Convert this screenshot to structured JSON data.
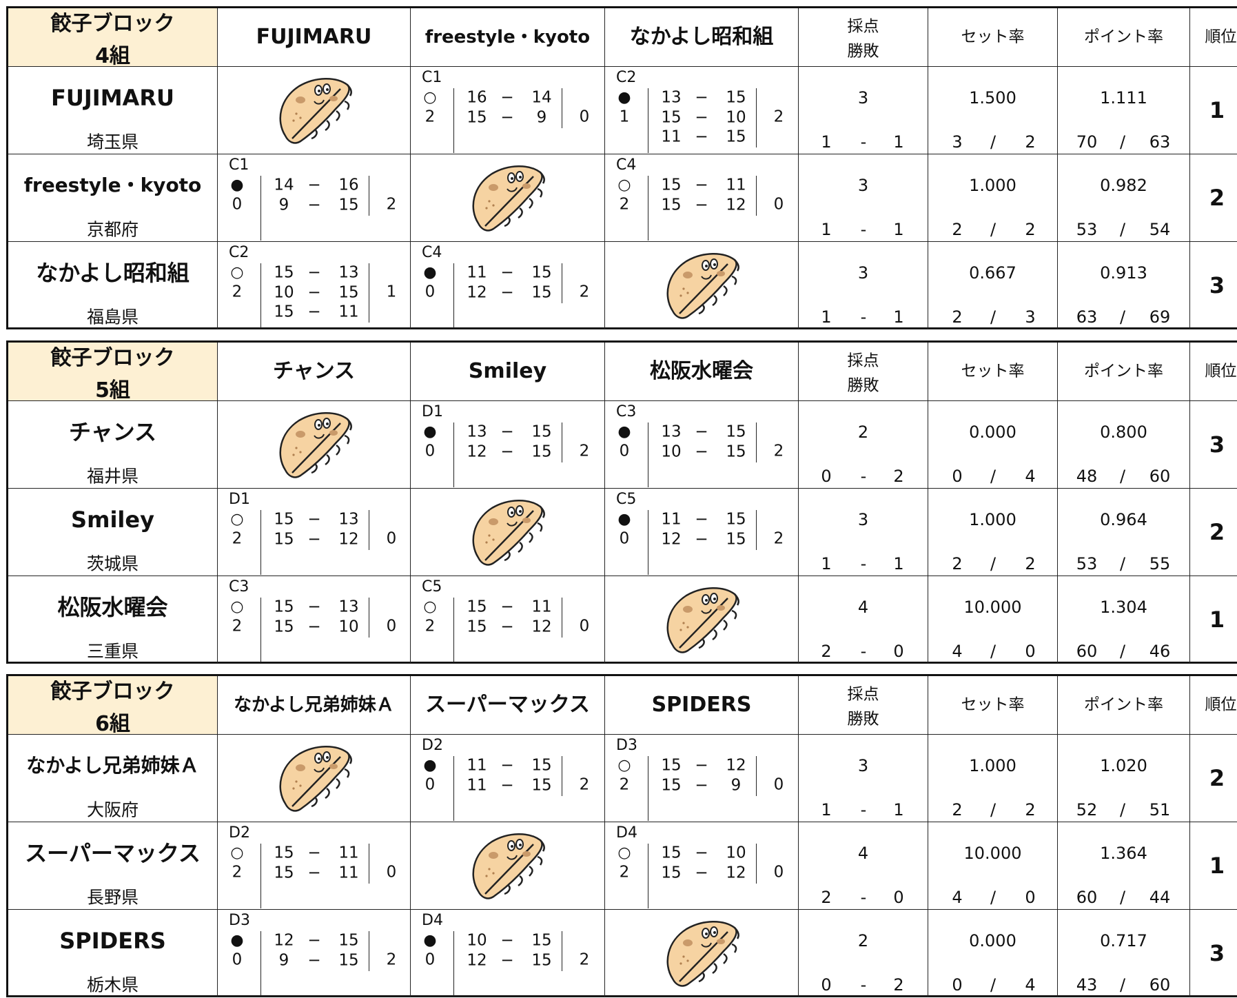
{
  "separators": {
    "score": "−",
    "record": "-",
    "ratio": "/"
  },
  "blocks": [
    {
      "title": [
        "餃子ブロック",
        "4組"
      ],
      "headers": [
        "採点",
        "勝敗",
        "セット率",
        "ポイント率",
        "順位"
      ],
      "teams": [
        {
          "name": "FUJIMARU",
          "pref": "埼玉県",
          "results": [
            null,
            {
              "code": "C1",
              "mark": "○",
              "won": 2,
              "scores": [
                [
                  16,
                  14
                ],
                [
                  15,
                  9
                ]
              ],
              "lost": 0
            },
            {
              "code": "C2",
              "mark": "●",
              "won": 1,
              "scores": [
                [
                  13,
                  15
                ],
                [
                  15,
                  10
                ],
                [
                  11,
                  15
                ]
              ],
              "lost": 2
            }
          ],
          "points": 3,
          "record": [
            1,
            1
          ],
          "set_rate": "1.500",
          "set_ratio": [
            3,
            2
          ],
          "point_rate": "1.111",
          "point_ratio": [
            70,
            63
          ],
          "rank": 1
        },
        {
          "name": "freestyle・kyoto",
          "pref": "京都府",
          "results": [
            {
              "code": "C1",
              "mark": "●",
              "won": 0,
              "scores": [
                [
                  14,
                  16
                ],
                [
                  9,
                  15
                ]
              ],
              "lost": 2
            },
            null,
            {
              "code": "C4",
              "mark": "○",
              "won": 2,
              "scores": [
                [
                  15,
                  11
                ],
                [
                  15,
                  12
                ]
              ],
              "lost": 0
            }
          ],
          "points": 3,
          "record": [
            1,
            1
          ],
          "set_rate": "1.000",
          "set_ratio": [
            2,
            2
          ],
          "point_rate": "0.982",
          "point_ratio": [
            53,
            54
          ],
          "rank": 2
        },
        {
          "name": "なかよし昭和組",
          "pref": "福島県",
          "results": [
            {
              "code": "C2",
              "mark": "○",
              "won": 2,
              "scores": [
                [
                  15,
                  13
                ],
                [
                  10,
                  15
                ],
                [
                  15,
                  11
                ]
              ],
              "lost": 1
            },
            {
              "code": "C4",
              "mark": "●",
              "won": 0,
              "scores": [
                [
                  11,
                  15
                ],
                [
                  12,
                  15
                ]
              ],
              "lost": 2
            },
            null
          ],
          "points": 3,
          "record": [
            1,
            1
          ],
          "set_rate": "0.667",
          "set_ratio": [
            2,
            3
          ],
          "point_rate": "0.913",
          "point_ratio": [
            63,
            69
          ],
          "rank": 3
        }
      ]
    },
    {
      "title": [
        "餃子ブロック",
        "5組"
      ],
      "headers": [
        "採点",
        "勝敗",
        "セット率",
        "ポイント率",
        "順位"
      ],
      "teams": [
        {
          "name": "チャンス",
          "pref": "福井県",
          "results": [
            null,
            {
              "code": "D1",
              "mark": "●",
              "won": 0,
              "scores": [
                [
                  13,
                  15
                ],
                [
                  12,
                  15
                ]
              ],
              "lost": 2
            },
            {
              "code": "C3",
              "mark": "●",
              "won": 0,
              "scores": [
                [
                  13,
                  15
                ],
                [
                  10,
                  15
                ]
              ],
              "lost": 2
            }
          ],
          "points": 2,
          "record": [
            0,
            2
          ],
          "set_rate": "0.000",
          "set_ratio": [
            0,
            4
          ],
          "point_rate": "0.800",
          "point_ratio": [
            48,
            60
          ],
          "rank": 3
        },
        {
          "name": "Smiley",
          "pref": "茨城県",
          "results": [
            {
              "code": "D1",
              "mark": "○",
              "won": 2,
              "scores": [
                [
                  15,
                  13
                ],
                [
                  15,
                  12
                ]
              ],
              "lost": 0
            },
            null,
            {
              "code": "C5",
              "mark": "●",
              "won": 0,
              "scores": [
                [
                  11,
                  15
                ],
                [
                  12,
                  15
                ]
              ],
              "lost": 2
            }
          ],
          "points": 3,
          "record": [
            1,
            1
          ],
          "set_rate": "1.000",
          "set_ratio": [
            2,
            2
          ],
          "point_rate": "0.964",
          "point_ratio": [
            53,
            55
          ],
          "rank": 2
        },
        {
          "name": "松阪水曜会",
          "pref": "三重県",
          "results": [
            {
              "code": "C3",
              "mark": "○",
              "won": 2,
              "scores": [
                [
                  15,
                  13
                ],
                [
                  15,
                  10
                ]
              ],
              "lost": 0
            },
            {
              "code": "C5",
              "mark": "○",
              "won": 2,
              "scores": [
                [
                  15,
                  11
                ],
                [
                  15,
                  12
                ]
              ],
              "lost": 0
            },
            null
          ],
          "points": 4,
          "record": [
            2,
            0
          ],
          "set_rate": "10.000",
          "set_ratio": [
            4,
            0
          ],
          "point_rate": "1.304",
          "point_ratio": [
            60,
            46
          ],
          "rank": 1
        }
      ]
    },
    {
      "title": [
        "餃子ブロック",
        "6組"
      ],
      "headers": [
        "採点",
        "勝敗",
        "セット率",
        "ポイント率",
        "順位"
      ],
      "teams": [
        {
          "name": "なかよし兄弟姉妹Ａ",
          "pref": "大阪府",
          "results": [
            null,
            {
              "code": "D2",
              "mark": "●",
              "won": 0,
              "scores": [
                [
                  11,
                  15
                ],
                [
                  11,
                  15
                ]
              ],
              "lost": 2
            },
            {
              "code": "D3",
              "mark": "○",
              "won": 2,
              "scores": [
                [
                  15,
                  12
                ],
                [
                  15,
                  9
                ]
              ],
              "lost": 0
            }
          ],
          "points": 3,
          "record": [
            1,
            1
          ],
          "set_rate": "1.000",
          "set_ratio": [
            2,
            2
          ],
          "point_rate": "1.020",
          "point_ratio": [
            52,
            51
          ],
          "rank": 2
        },
        {
          "name": "スーパーマックス",
          "pref": "長野県",
          "results": [
            {
              "code": "D2",
              "mark": "○",
              "won": 2,
              "scores": [
                [
                  15,
                  11
                ],
                [
                  15,
                  11
                ]
              ],
              "lost": 0
            },
            null,
            {
              "code": "D4",
              "mark": "○",
              "won": 2,
              "scores": [
                [
                  15,
                  10
                ],
                [
                  15,
                  12
                ]
              ],
              "lost": 0
            }
          ],
          "points": 4,
          "record": [
            2,
            0
          ],
          "set_rate": "10.000",
          "set_ratio": [
            4,
            0
          ],
          "point_rate": "1.364",
          "point_ratio": [
            60,
            44
          ],
          "rank": 1
        },
        {
          "name": "SPIDERS",
          "pref": "栃木県",
          "results": [
            {
              "code": "D3",
              "mark": "●",
              "won": 0,
              "scores": [
                [
                  12,
                  15
                ],
                [
                  9,
                  15
                ]
              ],
              "lost": 2
            },
            {
              "code": "D4",
              "mark": "●",
              "won": 0,
              "scores": [
                [
                  10,
                  15
                ],
                [
                  12,
                  15
                ]
              ],
              "lost": 2
            },
            null
          ],
          "points": 2,
          "record": [
            0,
            2
          ],
          "set_rate": "0.000",
          "set_ratio": [
            0,
            4
          ],
          "point_rate": "0.717",
          "point_ratio": [
            43,
            60
          ],
          "rank": 3
        }
      ]
    }
  ]
}
